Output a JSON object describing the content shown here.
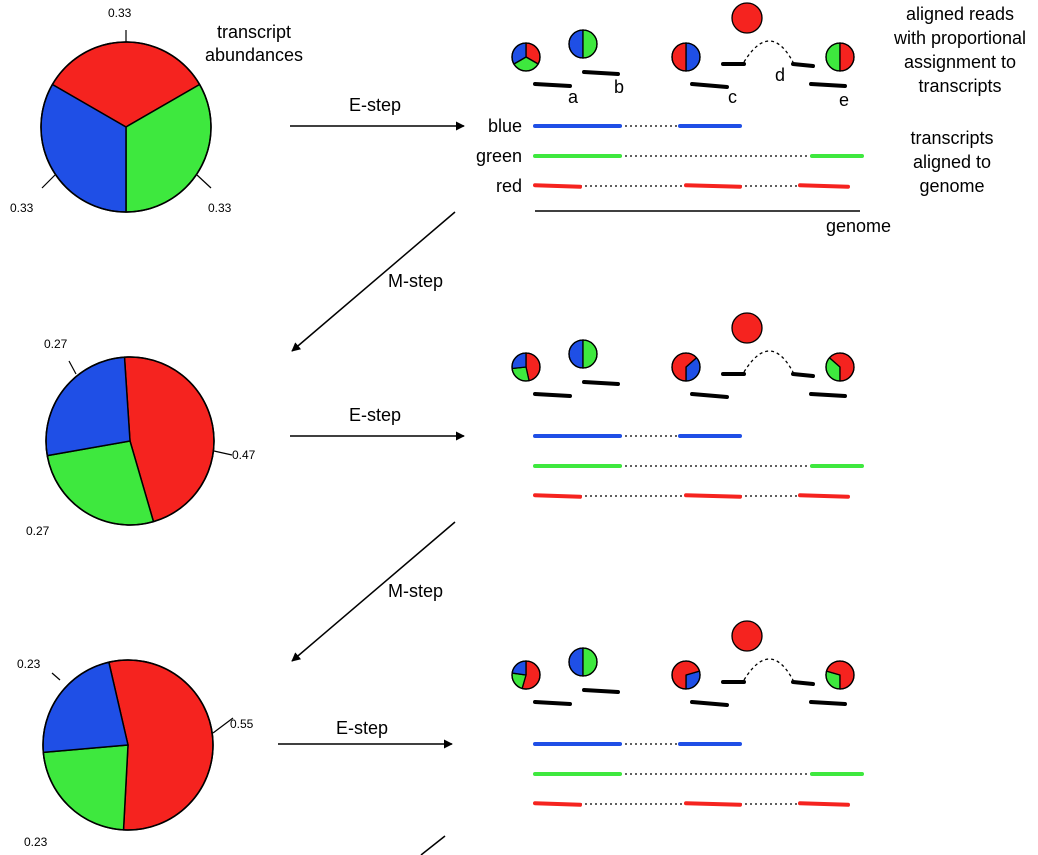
{
  "colors": {
    "blue": "#1f4fe6",
    "green": "#3ee83e",
    "red": "#f5231f",
    "read": "#000000"
  },
  "headers": {
    "abundances": [
      "transcript",
      "abundances"
    ],
    "reads": [
      "aligned reads",
      "with proportional",
      "assignment to",
      "transcripts"
    ],
    "transcripts": [
      "transcripts",
      "aligned to",
      "genome"
    ]
  },
  "labels": {
    "e_step": "E-step",
    "m_step": "M-step",
    "genome": "genome",
    "transcripts": [
      "blue",
      "green",
      "red"
    ],
    "reads": [
      "a",
      "b",
      "c",
      "d",
      "e"
    ]
  },
  "iterations": [
    {
      "abundances": {
        "blue": 0.33,
        "green": 0.33,
        "red": 0.33
      },
      "value_labels": {
        "blue": "0.33",
        "green": "0.33",
        "red": "0.33"
      }
    },
    {
      "abundances": {
        "blue": 0.27,
        "green": 0.27,
        "red": 0.47
      },
      "value_labels": {
        "blue": "0.27",
        "green": "0.27",
        "red": "0.47"
      }
    },
    {
      "abundances": {
        "blue": 0.23,
        "green": 0.23,
        "red": 0.55
      },
      "value_labels": {
        "blue": "0.23",
        "green": "0.23",
        "red": "0.55"
      }
    }
  ]
}
